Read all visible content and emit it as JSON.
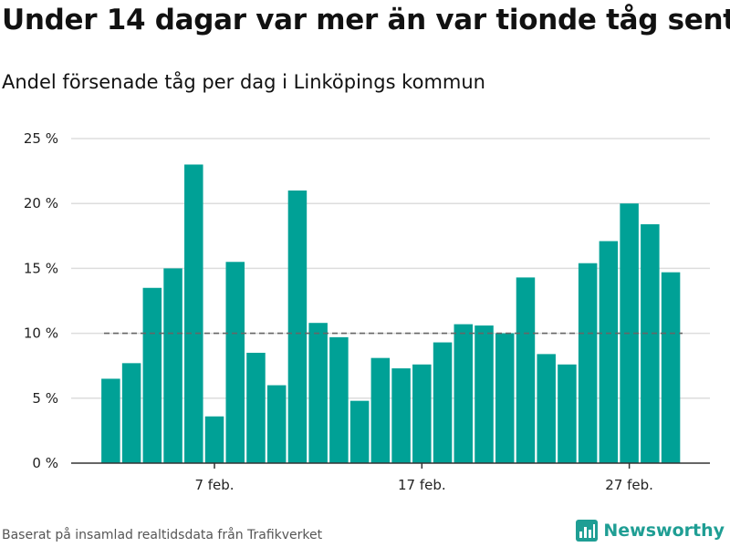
{
  "title": "Under 14 dagar var mer än var tionde tåg sent",
  "subtitle": "Andel försenade tåg per dag i Linköpings kommun",
  "footer": {
    "source": "Baserat på insamlad realtidsdata från Trafikverket",
    "brand": "Newsworthy"
  },
  "colors": {
    "bar": "#00a196",
    "brand": "#1f9e94",
    "grid": "#dddddd",
    "reference_line": "#666666",
    "axis": "#333333"
  },
  "icons": {
    "brand_logo": "bar-chart-logo-icon"
  },
  "chart_data": {
    "type": "bar",
    "title": "Under 14 dagar var mer än var tionde tåg sent",
    "subtitle": "Andel försenade tåg per dag i Linköpings kommun",
    "xlabel": "",
    "ylabel": "",
    "x_start_day": 1,
    "x": [
      2,
      3,
      4,
      5,
      6,
      7,
      8,
      9,
      10,
      11,
      12,
      13,
      14,
      15,
      16,
      17,
      18,
      19,
      20,
      21,
      22,
      23,
      24,
      25,
      26,
      27,
      28,
      29
    ],
    "values": [
      6.5,
      7.7,
      13.5,
      15.0,
      23.0,
      3.6,
      15.5,
      8.5,
      6.0,
      21.0,
      10.8,
      9.7,
      4.8,
      8.1,
      7.3,
      7.6,
      9.3,
      10.7,
      10.6,
      10.0,
      14.3,
      8.4,
      7.6,
      15.4,
      17.1,
      20.0,
      18.4,
      14.7
    ],
    "ylim": [
      0,
      25
    ],
    "yticks": [
      0,
      5,
      10,
      15,
      20,
      25
    ],
    "ytick_labels": [
      "0 %",
      "5 %",
      "10 %",
      "15 %",
      "20 %",
      "25 %"
    ],
    "xticks": [
      7,
      17,
      27
    ],
    "xtick_labels": [
      "7 feb.",
      "17 feb.",
      "27 feb."
    ],
    "reference_line": 10,
    "grid": true,
    "legend": "none"
  }
}
